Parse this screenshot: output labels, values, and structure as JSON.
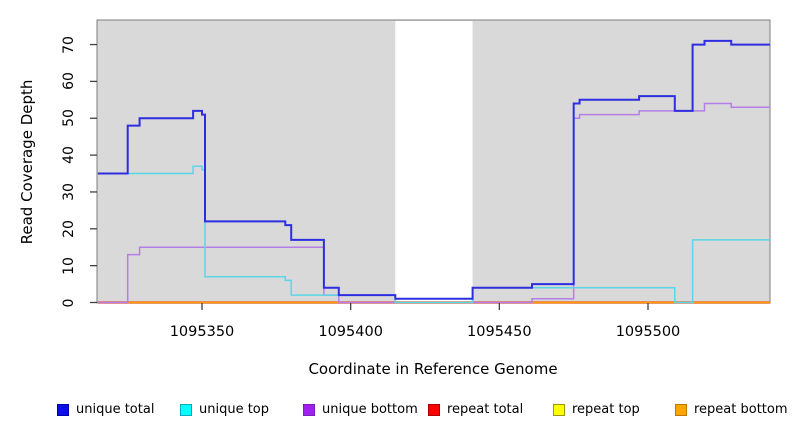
{
  "y_axis": {
    "label": "Read Coverage Depth",
    "ticks": [
      0,
      10,
      20,
      30,
      40,
      50,
      60,
      70
    ]
  },
  "x_axis": {
    "label": "Coordinate in Reference Genome",
    "ticks": [
      1095350,
      1095400,
      1095450,
      1095500
    ]
  },
  "legend": {
    "items": [
      {
        "label": "unique total",
        "fill": "#0d0de8",
        "border": "#0000aa"
      },
      {
        "label": "unique top",
        "fill": "#00ffff",
        "border": "#00aabb"
      },
      {
        "label": "unique bottom",
        "fill": "#a020f0",
        "border": "#7a1fb8"
      },
      {
        "label": "repeat total",
        "fill": "#ff0000",
        "border": "#aa0000"
      },
      {
        "label": "repeat top",
        "fill": "#ffff00",
        "border": "#999900"
      },
      {
        "label": "repeat bottom",
        "fill": "#ffa500",
        "border": "#bb7700"
      }
    ]
  },
  "chart_data": {
    "type": "line",
    "subtype": "step-coverage",
    "title": "",
    "xlabel": "Coordinate in Reference Genome",
    "ylabel": "Read Coverage Depth",
    "xlim": [
      1095315,
      1095541
    ],
    "ylim": [
      0,
      76
    ],
    "grid": false,
    "legend_position": "bottom",
    "plot_bg": "#d9d9d9",
    "masked_region": {
      "x_start": 1095415,
      "x_end": 1095441,
      "fill": "#ffffff"
    },
    "border_color": "#7e7e7e",
    "tick_color": "#404040",
    "series": [
      {
        "name": "repeat top",
        "color": "#ffff00",
        "width": 1.5,
        "points": [
          [
            1095315,
            0
          ],
          [
            1095541,
            0
          ]
        ]
      },
      {
        "name": "repeat total",
        "color": "#d84a5f",
        "width": 2.5,
        "points": [
          [
            1095315,
            0
          ],
          [
            1095541,
            0
          ]
        ]
      },
      {
        "name": "repeat bottom",
        "color": "#ff9d00",
        "width": 1.8,
        "points": [
          [
            1095315,
            0
          ],
          [
            1095541,
            0
          ]
        ]
      },
      {
        "name": "unique bottom",
        "color": "#b47ee6",
        "width": 1.5,
        "points": [
          [
            1095315,
            0
          ],
          [
            1095325,
            13
          ],
          [
            1095329,
            15
          ],
          [
            1095391,
            2
          ],
          [
            1095396,
            0
          ],
          [
            1095415,
            1
          ],
          [
            1095441,
            0
          ],
          [
            1095461,
            1
          ],
          [
            1095475,
            50
          ],
          [
            1095477,
            51
          ],
          [
            1095497,
            52
          ],
          [
            1095519,
            54
          ],
          [
            1095528,
            53
          ],
          [
            1095541,
            53
          ]
        ]
      },
      {
        "name": "unique top",
        "color": "#5ad7e6",
        "width": 1.5,
        "points": [
          [
            1095315,
            35
          ],
          [
            1095347,
            37
          ],
          [
            1095350,
            36
          ],
          [
            1095351,
            7
          ],
          [
            1095378,
            6
          ],
          [
            1095380,
            2
          ],
          [
            1095415,
            0
          ],
          [
            1095441,
            4
          ],
          [
            1095509,
            0
          ],
          [
            1095515,
            17
          ],
          [
            1095541,
            17
          ]
        ]
      },
      {
        "name": "unique total",
        "color": "#2e2ee0",
        "width": 2,
        "points": [
          [
            1095315,
            35
          ],
          [
            1095325,
            48
          ],
          [
            1095329,
            50
          ],
          [
            1095347,
            52
          ],
          [
            1095350,
            51
          ],
          [
            1095351,
            22
          ],
          [
            1095378,
            21
          ],
          [
            1095380,
            17
          ],
          [
            1095391,
            4
          ],
          [
            1095396,
            2
          ],
          [
            1095415,
            1
          ],
          [
            1095441,
            4
          ],
          [
            1095461,
            5
          ],
          [
            1095475,
            54
          ],
          [
            1095477,
            55
          ],
          [
            1095497,
            56
          ],
          [
            1095509,
            52
          ],
          [
            1095515,
            70
          ],
          [
            1095519,
            71
          ],
          [
            1095528,
            70
          ],
          [
            1095541,
            70
          ]
        ]
      }
    ]
  }
}
